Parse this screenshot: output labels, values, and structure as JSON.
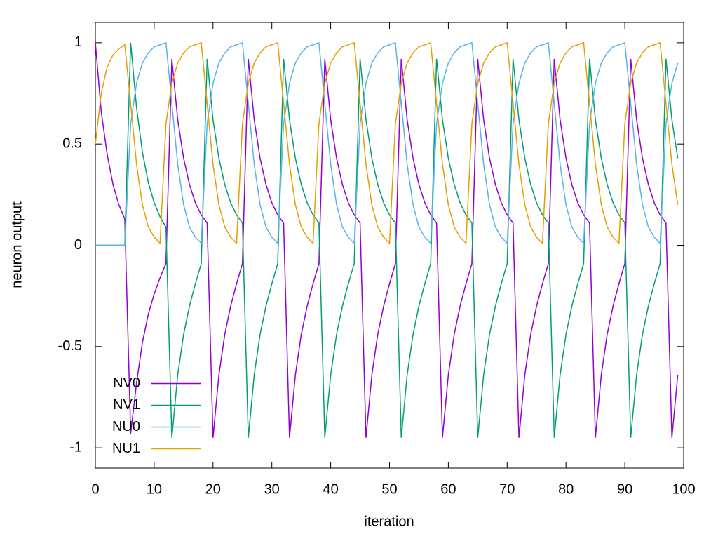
{
  "chart_data": {
    "type": "line",
    "xlabel": "iteration",
    "ylabel": "neuron output",
    "xlim": [
      0,
      100
    ],
    "ylim": [
      -1.1,
      1.1
    ],
    "xticks": [
      0,
      10,
      20,
      30,
      40,
      50,
      60,
      70,
      80,
      90,
      100
    ],
    "yticks": [
      -1,
      -0.5,
      0,
      0.5,
      1
    ],
    "legend": "bottom-left",
    "x": [
      0,
      1,
      2,
      3,
      4,
      5,
      6,
      7,
      8,
      9,
      10,
      11,
      12,
      13,
      14,
      15,
      16,
      17,
      18,
      19,
      20,
      21,
      22,
      23,
      24,
      25,
      26,
      27,
      28,
      29,
      30,
      31,
      32,
      33,
      34,
      35,
      36,
      37,
      38,
      39,
      40,
      41,
      42,
      43,
      44,
      45,
      46,
      47,
      48,
      49,
      50,
      51,
      52,
      53,
      54,
      55,
      56,
      57,
      58,
      59,
      60,
      61,
      62,
      63,
      64,
      65,
      66,
      67,
      68,
      69,
      70,
      71,
      72,
      73,
      74,
      75,
      76,
      77,
      78,
      79,
      80,
      81,
      82,
      83,
      84,
      85,
      86,
      87,
      88,
      89,
      90,
      91,
      92,
      93,
      94,
      95,
      96,
      97,
      98,
      99
    ],
    "series": [
      {
        "name": "NV0",
        "color": "#9400d3",
        "values": [
          1.0,
          0.66,
          0.45,
          0.3,
          0.2,
          0.13,
          -0.93,
          -0.68,
          -0.48,
          -0.34,
          -0.24,
          -0.16,
          -0.09,
          0.92,
          0.62,
          0.43,
          0.3,
          0.21,
          0.15,
          0.11,
          -0.95,
          -0.64,
          -0.44,
          -0.3,
          -0.19,
          -0.09,
          0.92,
          0.62,
          0.43,
          0.3,
          0.21,
          0.15,
          0.11,
          -0.95,
          -0.64,
          -0.44,
          -0.3,
          -0.19,
          -0.09,
          0.92,
          0.62,
          0.43,
          0.3,
          0.21,
          0.15,
          0.11,
          -0.95,
          -0.64,
          -0.44,
          -0.3,
          -0.19,
          -0.09,
          0.92,
          0.62,
          0.43,
          0.3,
          0.21,
          0.15,
          0.11,
          -0.95,
          -0.64,
          -0.44,
          -0.3,
          -0.19,
          -0.09,
          0.92,
          0.62,
          0.43,
          0.3,
          0.21,
          0.15,
          0.11,
          -0.95,
          -0.64,
          -0.44,
          -0.3,
          -0.19,
          -0.09,
          0.92,
          0.62,
          0.43,
          0.3,
          0.21,
          0.15,
          0.11,
          -0.95,
          -0.64,
          -0.44,
          -0.3,
          -0.19,
          -0.09,
          0.92,
          0.62,
          0.43,
          0.3,
          0.21,
          0.15,
          0.11,
          -0.95,
          -0.64
        ]
      },
      {
        "name": "NV1",
        "color": "#009e73",
        "values": [
          0,
          0,
          0,
          0,
          0,
          0,
          1.0,
          0.68,
          0.46,
          0.31,
          0.21,
          0.14,
          0.09,
          -0.95,
          -0.64,
          -0.44,
          -0.3,
          -0.19,
          -0.09,
          0.92,
          0.62,
          0.43,
          0.3,
          0.21,
          0.15,
          0.11,
          -0.95,
          -0.64,
          -0.44,
          -0.3,
          -0.19,
          -0.09,
          0.92,
          0.62,
          0.43,
          0.3,
          0.21,
          0.15,
          0.11,
          -0.95,
          -0.64,
          -0.44,
          -0.3,
          -0.19,
          -0.09,
          0.92,
          0.62,
          0.43,
          0.3,
          0.21,
          0.15,
          0.11,
          -0.95,
          -0.64,
          -0.44,
          -0.3,
          -0.19,
          -0.09,
          0.92,
          0.62,
          0.43,
          0.3,
          0.21,
          0.15,
          0.11,
          -0.95,
          -0.64,
          -0.44,
          -0.3,
          -0.19,
          -0.09,
          0.92,
          0.62,
          0.43,
          0.3,
          0.21,
          0.15,
          0.11,
          -0.95,
          -0.64,
          -0.44,
          -0.3,
          -0.19,
          -0.09,
          0.92,
          0.62,
          0.43,
          0.3,
          0.21,
          0.15,
          0.11,
          -0.95,
          -0.64,
          -0.44,
          -0.3,
          -0.19,
          -0.09,
          0.92,
          0.62,
          0.43
        ]
      },
      {
        "name": "NU0",
        "color": "#56b4e9",
        "values": [
          0,
          0,
          0,
          0,
          0,
          0,
          0.6,
          0.8,
          0.9,
          0.95,
          0.98,
          0.99,
          1.0,
          0.7,
          0.4,
          0.2,
          0.09,
          0.04,
          0.01,
          0.6,
          0.8,
          0.9,
          0.95,
          0.98,
          0.99,
          1.0,
          0.7,
          0.4,
          0.2,
          0.09,
          0.04,
          0.01,
          0.6,
          0.8,
          0.9,
          0.95,
          0.98,
          0.99,
          1.0,
          0.7,
          0.4,
          0.2,
          0.09,
          0.04,
          0.01,
          0.6,
          0.8,
          0.9,
          0.95,
          0.98,
          0.99,
          1.0,
          0.7,
          0.4,
          0.2,
          0.09,
          0.04,
          0.01,
          0.6,
          0.8,
          0.9,
          0.95,
          0.98,
          0.99,
          1.0,
          0.7,
          0.4,
          0.2,
          0.09,
          0.04,
          0.01,
          0.6,
          0.8,
          0.9,
          0.95,
          0.98,
          0.99,
          1.0,
          0.7,
          0.4,
          0.2,
          0.09,
          0.04,
          0.01,
          0.6,
          0.8,
          0.9,
          0.95,
          0.98,
          0.99,
          1.0,
          0.7,
          0.4,
          0.2,
          0.09,
          0.04,
          0.01,
          0.6,
          0.8,
          0.9
        ]
      },
      {
        "name": "NU1",
        "color": "#e69f00",
        "values": [
          0.5,
          0.75,
          0.88,
          0.94,
          0.97,
          0.99,
          0.7,
          0.4,
          0.2,
          0.09,
          0.04,
          0.01,
          0.6,
          0.8,
          0.9,
          0.95,
          0.98,
          0.99,
          1.0,
          0.7,
          0.4,
          0.2,
          0.09,
          0.04,
          0.01,
          0.6,
          0.8,
          0.9,
          0.95,
          0.98,
          0.99,
          1.0,
          0.7,
          0.4,
          0.2,
          0.09,
          0.04,
          0.01,
          0.6,
          0.8,
          0.9,
          0.95,
          0.98,
          0.99,
          1.0,
          0.7,
          0.4,
          0.2,
          0.09,
          0.04,
          0.01,
          0.6,
          0.8,
          0.9,
          0.95,
          0.98,
          0.99,
          1.0,
          0.7,
          0.4,
          0.2,
          0.09,
          0.04,
          0.01,
          0.6,
          0.8,
          0.9,
          0.95,
          0.98,
          0.99,
          1.0,
          0.7,
          0.4,
          0.2,
          0.09,
          0.04,
          0.01,
          0.6,
          0.8,
          0.9,
          0.95,
          0.98,
          0.99,
          1.0,
          0.7,
          0.4,
          0.2,
          0.09,
          0.04,
          0.01,
          0.6,
          0.8,
          0.9,
          0.95,
          0.98,
          0.99,
          1.0,
          0.7,
          0.4,
          0.2
        ]
      }
    ]
  }
}
